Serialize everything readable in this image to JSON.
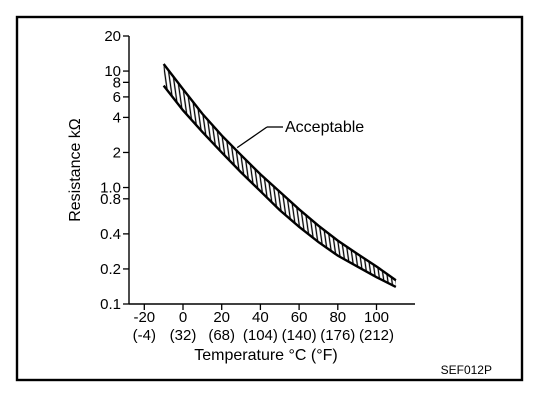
{
  "chart_data": {
    "type": "area",
    "title": "",
    "xlabel": "Temperature °C (°F)",
    "ylabel": "Resistance kΩ",
    "x_scale": "linear",
    "y_scale": "log",
    "xlim": [
      -20,
      100
    ],
    "ylim": [
      0.1,
      20
    ],
    "grid": false,
    "x_ticks": [
      {
        "value": -20,
        "label": "-20",
        "sublabel": "(-4)"
      },
      {
        "value": 0,
        "label": "0",
        "sublabel": "(32)"
      },
      {
        "value": 20,
        "label": "20",
        "sublabel": "(68)"
      },
      {
        "value": 40,
        "label": "40",
        "sublabel": "(104)"
      },
      {
        "value": 60,
        "label": "60",
        "sublabel": "(140)"
      },
      {
        "value": 80,
        "label": "80",
        "sublabel": "(176)"
      },
      {
        "value": 100,
        "label": "100",
        "sublabel": "(212)"
      }
    ],
    "y_ticks": [
      {
        "value": 20,
        "label": "20"
      },
      {
        "value": 10,
        "label": "10"
      },
      {
        "value": 8,
        "label": "8"
      },
      {
        "value": 6,
        "label": "6"
      },
      {
        "value": 4,
        "label": "4"
      },
      {
        "value": 2,
        "label": "2"
      },
      {
        "value": 1.0,
        "label": "1.0"
      },
      {
        "value": 0.8,
        "label": "0.8"
      },
      {
        "value": 0.4,
        "label": "0.4"
      },
      {
        "value": 0.2,
        "label": "0.2"
      },
      {
        "value": 0.1,
        "label": "0.1"
      }
    ],
    "band": {
      "x": [
        -10,
        0,
        10,
        20,
        30,
        40,
        50,
        60,
        70,
        80,
        90,
        100,
        110
      ],
      "upper": [
        11.5,
        7.0,
        4.3,
        2.8,
        1.9,
        1.3,
        0.92,
        0.65,
        0.47,
        0.35,
        0.27,
        0.21,
        0.16
      ],
      "lower": [
        7.5,
        4.6,
        3.0,
        2.0,
        1.35,
        0.93,
        0.64,
        0.46,
        0.34,
        0.26,
        0.21,
        0.17,
        0.14
      ]
    },
    "annotations": [
      {
        "text": "Acceptable",
        "x": 28,
        "y": 2.2
      }
    ]
  },
  "figure_code": "SEF012P"
}
